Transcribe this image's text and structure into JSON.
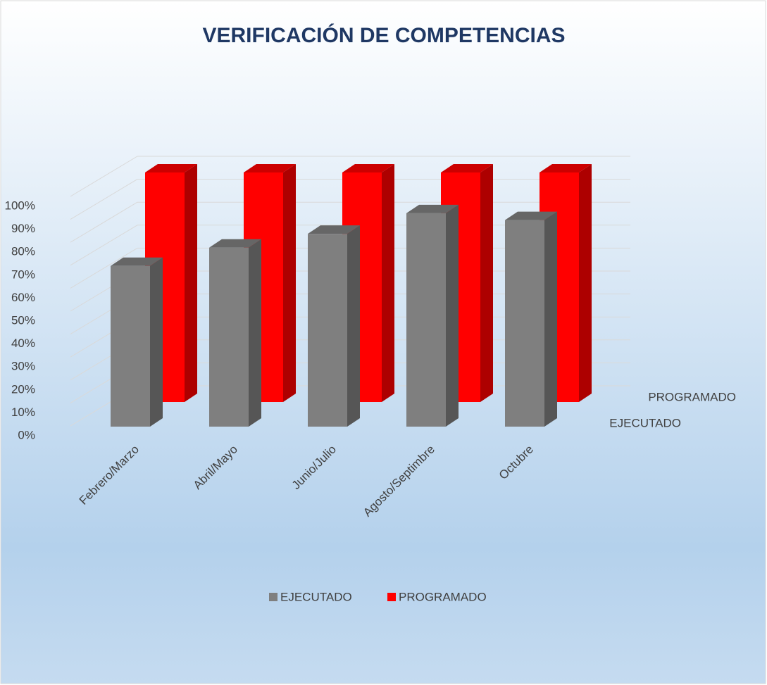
{
  "chart_data": {
    "type": "bar3d",
    "title": "VERIFICACIÓN DE COMPETENCIAS",
    "categories": [
      "Febrero/Marzo",
      "Abril/Mayo",
      "Junio/Julio",
      "Agosto/Septimbre",
      "Octubre"
    ],
    "series": [
      {
        "name": "EJECUTADO",
        "color": "#7f7f7f",
        "values": [
          70,
          78,
          84,
          93,
          90
        ]
      },
      {
        "name": "PROGRAMADO",
        "color": "#ff0000",
        "values": [
          100,
          100,
          100,
          100,
          100
        ]
      }
    ],
    "ylim": [
      0,
      100
    ],
    "yticks": [
      {
        "value": 0,
        "label": "0%"
      },
      {
        "value": 10,
        "label": "10%"
      },
      {
        "value": 20,
        "label": "20%"
      },
      {
        "value": 30,
        "label": "30%"
      },
      {
        "value": 40,
        "label": "40%"
      },
      {
        "value": 50,
        "label": "50%"
      },
      {
        "value": 60,
        "label": "60%"
      },
      {
        "value": 70,
        "label": "70%"
      },
      {
        "value": 80,
        "label": "80%"
      },
      {
        "value": 90,
        "label": "90%"
      },
      {
        "value": 100,
        "label": "100%"
      }
    ],
    "grid": true,
    "legend": "bottom"
  }
}
